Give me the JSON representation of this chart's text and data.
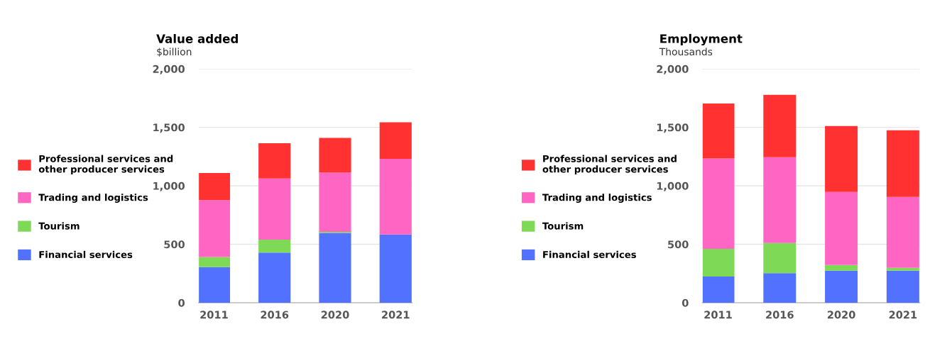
{
  "chart_data": [
    {
      "type": "bar",
      "title": "Value added",
      "subtitle": "$billion",
      "categories": [
        "2011",
        "2016",
        "2020",
        "2021"
      ],
      "stacked": true,
      "ylim": [
        0,
        2000
      ],
      "yticks": [
        0,
        {
          "value": 500,
          "label": "500"
        },
        {
          "value": 1000,
          "label": "1,000"
        },
        {
          "value": 1500,
          "label": "1,500"
        },
        {
          "value": 2000,
          "label": "2,000"
        }
      ],
      "grid": "y",
      "legend": "left",
      "series": [
        {
          "name": "Financial services",
          "color": "#5271ff",
          "values": [
            304,
            429,
            597,
            583
          ]
        },
        {
          "name": "Tourism",
          "color": "#7ed957",
          "values": [
            87,
            111,
            10,
            null
          ]
        },
        {
          "name": "Trading and logistics",
          "color": "#ff66c4",
          "values": [
            486,
            523,
            506,
            648
          ]
        },
        {
          "name": "Professional services and\nother producer services",
          "color": "#ff3131",
          "values": [
            232,
            301,
            296,
            312
          ]
        }
      ]
    },
    {
      "type": "bar",
      "title": "Employment",
      "subtitle": "Thousands",
      "categories": [
        "2011",
        "2016",
        "2020",
        "2021"
      ],
      "stacked": true,
      "ylim": [
        0,
        2000
      ],
      "yticks": [
        0,
        {
          "value": 500,
          "label": "500"
        },
        {
          "value": 1000,
          "label": "1,000"
        },
        {
          "value": 1500,
          "label": "1,500"
        },
        {
          "value": 2000,
          "label": "2,000"
        }
      ],
      "grid": "y",
      "legend": "left",
      "series": [
        {
          "name": "Financial services",
          "color": "#5271ff",
          "values": [
            224,
            253,
            275,
            275
          ]
        },
        {
          "name": "Tourism",
          "color": "#7ed957",
          "values": [
            237,
            258,
            48,
            24
          ]
        },
        {
          "name": "Trading and logistics",
          "color": "#ff66c4",
          "values": [
            773,
            733,
            624,
            606
          ]
        },
        {
          "name": "Professional services and\nother producer services",
          "color": "#ff3131",
          "values": [
            469,
            534,
            564,
            570
          ]
        }
      ]
    }
  ]
}
